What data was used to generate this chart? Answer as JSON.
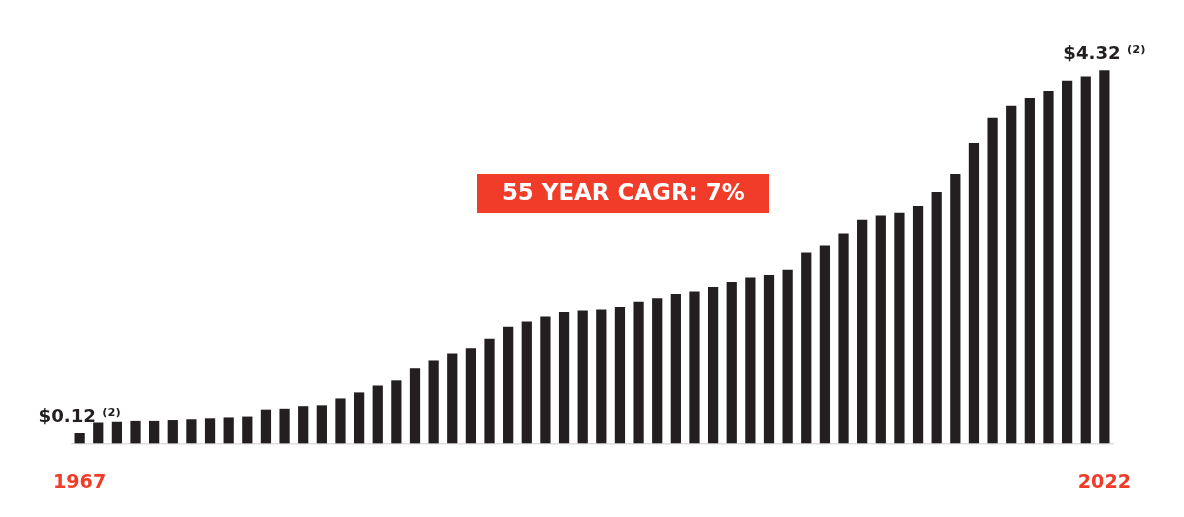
{
  "chart_data": {
    "type": "bar",
    "categories": [
      "1967",
      null,
      null,
      null,
      null,
      null,
      null,
      null,
      null,
      null,
      null,
      null,
      null,
      null,
      null,
      null,
      null,
      null,
      null,
      null,
      null,
      null,
      null,
      null,
      null,
      null,
      null,
      null,
      null,
      null,
      null,
      null,
      null,
      null,
      null,
      null,
      null,
      null,
      null,
      null,
      null,
      null,
      null,
      null,
      null,
      null,
      null,
      null,
      null,
      null,
      null,
      null,
      null,
      null,
      null,
      "2022"
    ],
    "values": [
      0.12,
      0.24,
      0.25,
      0.26,
      0.26,
      0.27,
      0.28,
      0.29,
      0.3,
      0.31,
      0.39,
      0.4,
      0.43,
      0.44,
      0.52,
      0.59,
      0.67,
      0.73,
      0.87,
      0.96,
      1.04,
      1.1,
      1.21,
      1.35,
      1.41,
      1.47,
      1.52,
      1.54,
      1.55,
      1.58,
      1.64,
      1.68,
      1.73,
      1.76,
      1.81,
      1.87,
      1.92,
      1.95,
      2.01,
      2.21,
      2.29,
      2.43,
      2.59,
      2.64,
      2.67,
      2.75,
      2.91,
      3.12,
      3.48,
      3.77,
      3.91,
      4.0,
      4.08,
      4.2,
      4.25,
      4.32
    ],
    "value_labels": [
      "$0.12 ⁽²⁾",
      null,
      null,
      null,
      null,
      null,
      null,
      null,
      null,
      null,
      null,
      null,
      null,
      null,
      null,
      null,
      null,
      null,
      null,
      null,
      null,
      null,
      null,
      null,
      null,
      null,
      null,
      null,
      null,
      null,
      null,
      null,
      null,
      null,
      null,
      null,
      null,
      null,
      null,
      null,
      null,
      null,
      null,
      null,
      null,
      null,
      null,
      null,
      null,
      null,
      null,
      null,
      null,
      null,
      null,
      "$4.32 ⁽²⁾"
    ],
    "color": "#231f20",
    "annotations": [
      "55 YEAR CAGR: 7%"
    ]
  }
}
